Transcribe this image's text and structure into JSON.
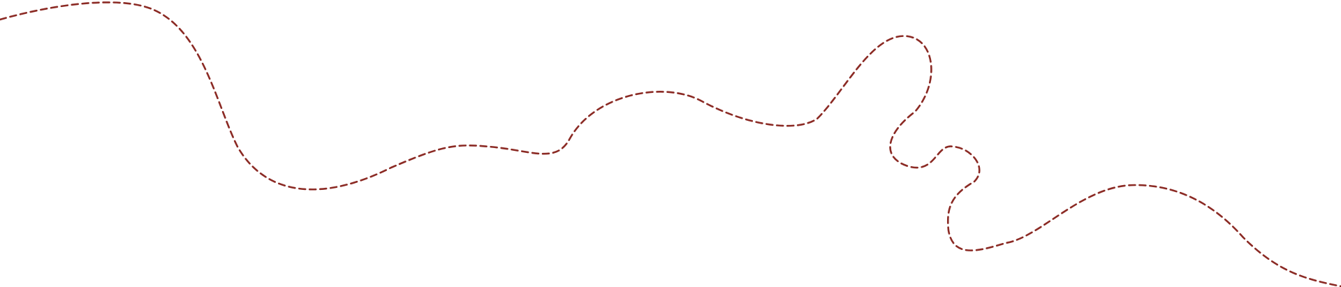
{
  "path": {
    "stroke_color": "#8b2a24",
    "style": "dashed"
  }
}
